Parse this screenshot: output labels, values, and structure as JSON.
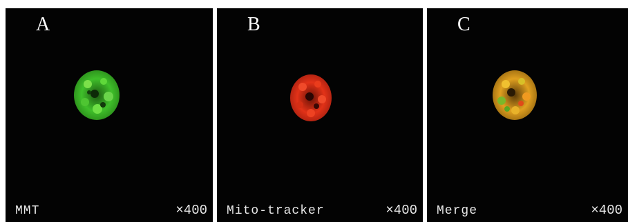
{
  "panels": [
    {
      "letter": "A",
      "caption": "MMT",
      "magnification": "×400",
      "stain_color": "#3fbf2a"
    },
    {
      "letter": "B",
      "caption": "Mito-tracker",
      "magnification": "×400",
      "stain_color": "#e23218"
    },
    {
      "letter": "C",
      "caption": "Merge",
      "magnification": "×400",
      "stain_color": "#e0a020"
    }
  ]
}
